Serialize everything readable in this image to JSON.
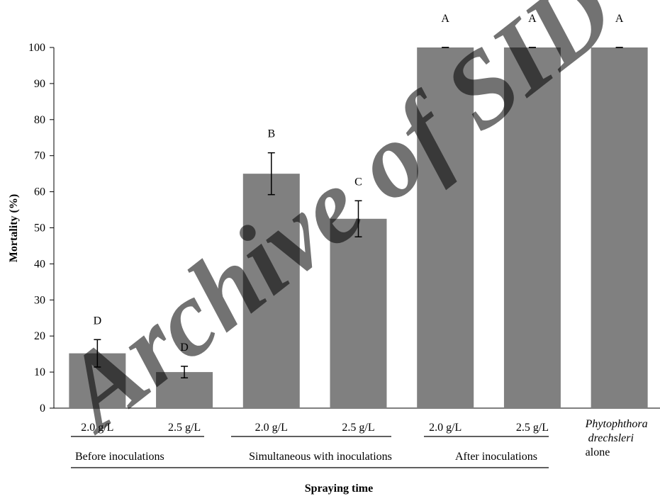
{
  "chart_data": {
    "type": "bar",
    "title": "",
    "xlabel": "Spraying time",
    "ylabel": "Mortality (%)",
    "ylim": [
      0,
      100
    ],
    "yticks": [
      0,
      10,
      20,
      30,
      40,
      50,
      60,
      70,
      80,
      90,
      100
    ],
    "grid": false,
    "bar_color": "#808080",
    "bars": [
      {
        "label": "2.0 g/L",
        "value": 15.2,
        "error": 3.8,
        "significance": "D",
        "group": 0
      },
      {
        "label": "2.5 g/L",
        "value": 10.0,
        "error": 1.6,
        "significance": "D",
        "group": 0
      },
      {
        "label": "2.0 g/L",
        "value": 65.0,
        "error": 5.8,
        "significance": "B",
        "group": 1
      },
      {
        "label": "2.5 g/L",
        "value": 52.5,
        "error": 5.0,
        "significance": "C",
        "group": 1
      },
      {
        "label": "2.0 g/L",
        "value": 100,
        "error": 0,
        "significance": "A",
        "group": 2
      },
      {
        "label": "2.5 g/L",
        "value": 100,
        "error": 0,
        "significance": "A",
        "group": 2
      },
      {
        "label_lines": [
          "Phytophthora",
          "drechsleri"
        ],
        "label_suffix": "alone",
        "value": 100,
        "error": 0,
        "significance": "A",
        "group": 3
      }
    ],
    "groups": [
      {
        "label": "Before inoculations"
      },
      {
        "label": "Simultaneous with inoculations"
      },
      {
        "label": "After inoculations"
      }
    ]
  },
  "watermark": "Archive of SID"
}
